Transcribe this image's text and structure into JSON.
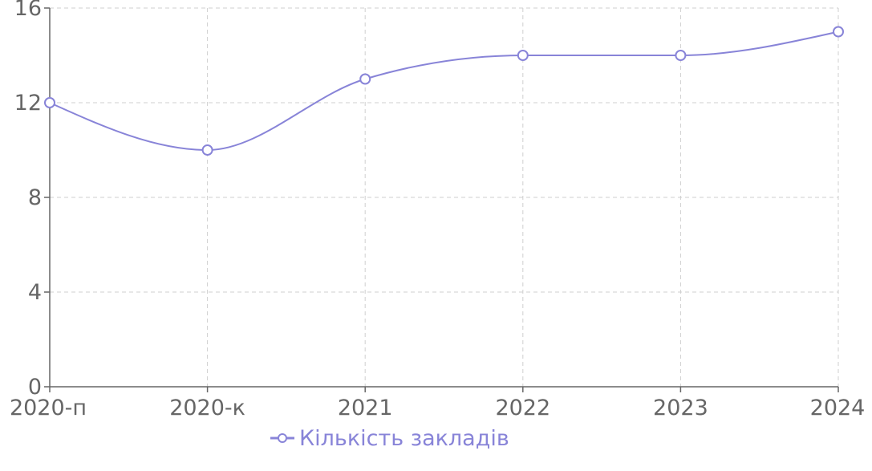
{
  "chart_data": {
    "type": "line",
    "categories": [
      "2020-п",
      "2020-к",
      "2021",
      "2022",
      "2023",
      "2024"
    ],
    "series": [
      {
        "name": "Кількість закладів",
        "values": [
          12,
          10,
          13,
          14,
          14,
          15
        ],
        "color": "#8884d8"
      }
    ],
    "yticks": [
      0,
      4,
      8,
      12,
      16
    ],
    "ylim": [
      0,
      16
    ],
    "grid": true,
    "legend_position": "bottom"
  }
}
